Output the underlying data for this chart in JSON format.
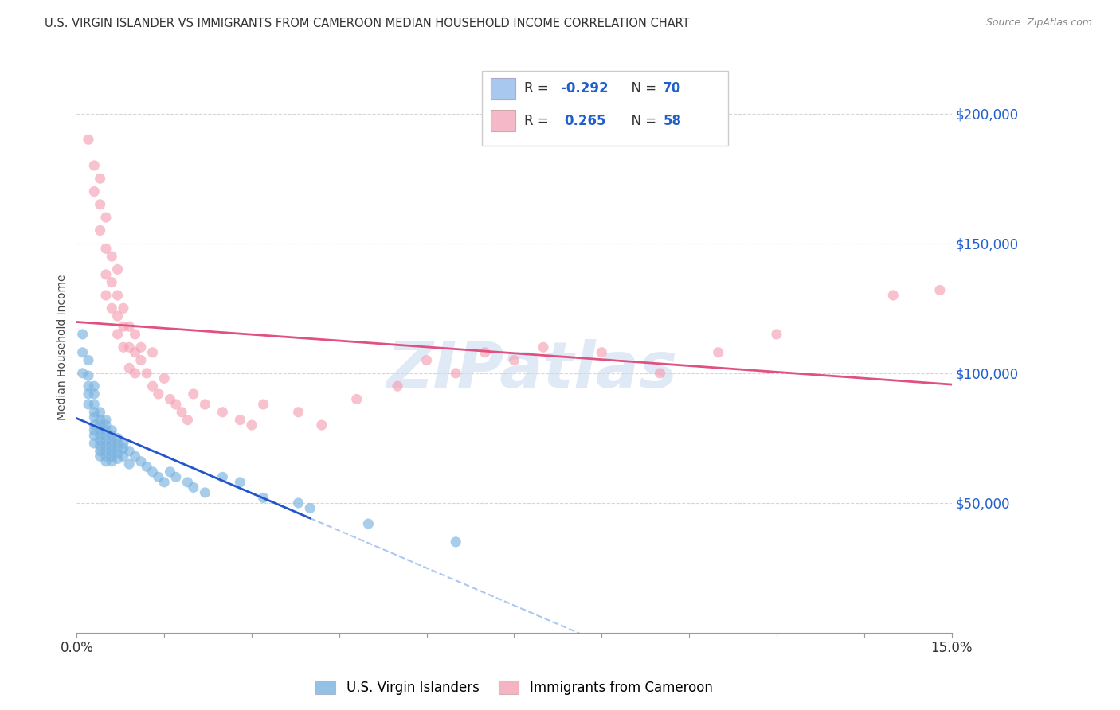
{
  "title": "U.S. VIRGIN ISLANDER VS IMMIGRANTS FROM CAMEROON MEDIAN HOUSEHOLD INCOME CORRELATION CHART",
  "source": "Source: ZipAtlas.com",
  "ylabel": "Median Household Income",
  "ytick_labels": [
    "$50,000",
    "$100,000",
    "$150,000",
    "$200,000"
  ],
  "ytick_values": [
    50000,
    100000,
    150000,
    200000
  ],
  "legend_label1": "U.S. Virgin Islanders",
  "legend_label2": "Immigrants from Cameroon",
  "blue_color": "#7ab3e0",
  "pink_color": "#f4a0b5",
  "blue_line_color": "#2255cc",
  "pink_line_color": "#e05080",
  "dashed_line_color": "#aac8f0",
  "legend_box_color": "#a8c8f0",
  "legend_pink_color": "#f4b8c8",
  "watermark_color": "#c8d8f0",
  "background_color": "#ffffff",
  "grid_color": "#cccccc",
  "xlim": [
    0.0,
    0.15
  ],
  "ylim": [
    0,
    220000
  ],
  "blue_N": 70,
  "pink_N": 58,
  "blue_R": "-0.292",
  "pink_R": "0.265",
  "blue_scatter_x": [
    0.001,
    0.001,
    0.001,
    0.002,
    0.002,
    0.002,
    0.002,
    0.002,
    0.003,
    0.003,
    0.003,
    0.003,
    0.003,
    0.003,
    0.003,
    0.003,
    0.003,
    0.004,
    0.004,
    0.004,
    0.004,
    0.004,
    0.004,
    0.004,
    0.004,
    0.004,
    0.005,
    0.005,
    0.005,
    0.005,
    0.005,
    0.005,
    0.005,
    0.005,
    0.005,
    0.006,
    0.006,
    0.006,
    0.006,
    0.006,
    0.006,
    0.006,
    0.007,
    0.007,
    0.007,
    0.007,
    0.007,
    0.008,
    0.008,
    0.008,
    0.009,
    0.009,
    0.01,
    0.011,
    0.012,
    0.013,
    0.014,
    0.015,
    0.016,
    0.017,
    0.019,
    0.02,
    0.022,
    0.025,
    0.028,
    0.032,
    0.038,
    0.04,
    0.05,
    0.065
  ],
  "blue_scatter_y": [
    115000,
    108000,
    100000,
    105000,
    99000,
    95000,
    92000,
    88000,
    95000,
    92000,
    88000,
    85000,
    83000,
    80000,
    78000,
    76000,
    73000,
    85000,
    82000,
    80000,
    78000,
    76000,
    74000,
    72000,
    70000,
    68000,
    82000,
    80000,
    78000,
    76000,
    74000,
    72000,
    70000,
    68000,
    66000,
    78000,
    76000,
    74000,
    72000,
    70000,
    68000,
    66000,
    75000,
    73000,
    71000,
    69000,
    67000,
    73000,
    71000,
    68000,
    70000,
    65000,
    68000,
    66000,
    64000,
    62000,
    60000,
    58000,
    62000,
    60000,
    58000,
    56000,
    54000,
    60000,
    58000,
    52000,
    50000,
    48000,
    42000,
    35000
  ],
  "pink_scatter_x": [
    0.002,
    0.003,
    0.003,
    0.004,
    0.004,
    0.004,
    0.005,
    0.005,
    0.005,
    0.005,
    0.006,
    0.006,
    0.006,
    0.007,
    0.007,
    0.007,
    0.007,
    0.008,
    0.008,
    0.008,
    0.009,
    0.009,
    0.009,
    0.01,
    0.01,
    0.01,
    0.011,
    0.011,
    0.012,
    0.013,
    0.013,
    0.014,
    0.015,
    0.016,
    0.017,
    0.018,
    0.019,
    0.02,
    0.022,
    0.025,
    0.028,
    0.03,
    0.032,
    0.038,
    0.042,
    0.048,
    0.055,
    0.06,
    0.065,
    0.07,
    0.075,
    0.08,
    0.09,
    0.1,
    0.11,
    0.12,
    0.14,
    0.148
  ],
  "pink_scatter_y": [
    190000,
    180000,
    170000,
    175000,
    165000,
    155000,
    160000,
    148000,
    138000,
    130000,
    145000,
    135000,
    125000,
    140000,
    130000,
    122000,
    115000,
    125000,
    118000,
    110000,
    118000,
    110000,
    102000,
    115000,
    108000,
    100000,
    110000,
    105000,
    100000,
    108000,
    95000,
    92000,
    98000,
    90000,
    88000,
    85000,
    82000,
    92000,
    88000,
    85000,
    82000,
    80000,
    88000,
    85000,
    80000,
    90000,
    95000,
    105000,
    100000,
    108000,
    105000,
    110000,
    108000,
    100000,
    108000,
    115000,
    130000,
    132000
  ]
}
